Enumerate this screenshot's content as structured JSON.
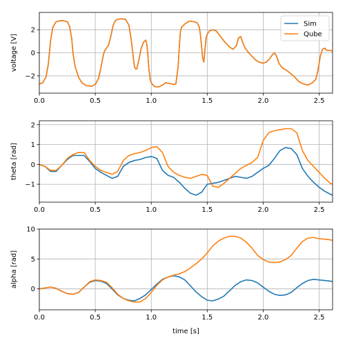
{
  "chart_data": [
    {
      "type": "line",
      "ylabel": "voltage [V]",
      "xlabel": "",
      "xlim": [
        0.0,
        2.62
      ],
      "ylim": [
        -3.5,
        3.5
      ],
      "xticks": [
        0.0,
        0.5,
        1.0,
        1.5,
        2.0,
        2.5
      ],
      "xtick_labels": [
        "0.0",
        "0.5",
        "1.0",
        "1.5",
        "2.0",
        "2.5"
      ],
      "yticks": [
        -2,
        0,
        2
      ],
      "ytick_labels": [
        "−2",
        "0",
        "2"
      ],
      "grid": true,
      "legend": {
        "placement": "top-right",
        "entries": [
          "Sim",
          "Qube"
        ]
      },
      "series": [
        {
          "name": "Sim",
          "color": "#1f77b4",
          "x": [
            0.0,
            0.03,
            0.06,
            0.08,
            0.1,
            0.12,
            0.15,
            0.2,
            0.25,
            0.27,
            0.29,
            0.3,
            0.32,
            0.35,
            0.38,
            0.42,
            0.47,
            0.5,
            0.53,
            0.55,
            0.57,
            0.58,
            0.6,
            0.62,
            0.64,
            0.66,
            0.68,
            0.7,
            0.73,
            0.77,
            0.8,
            0.82,
            0.84,
            0.85,
            0.86,
            0.87,
            0.89,
            0.91,
            0.93,
            0.95,
            0.96,
            0.97,
            0.98,
            0.99,
            1.0,
            1.02,
            1.04,
            1.07,
            1.1,
            1.13,
            1.16,
            1.18,
            1.2,
            1.22,
            1.24,
            1.25,
            1.26,
            1.27,
            1.3,
            1.34,
            1.38,
            1.41,
            1.43,
            1.44,
            1.45,
            1.46,
            1.47,
            1.48,
            1.49,
            1.5,
            1.52,
            1.55,
            1.58,
            1.62,
            1.66,
            1.7,
            1.73,
            1.76,
            1.78,
            1.8,
            1.81,
            1.82,
            1.84,
            1.87,
            1.9,
            1.93,
            1.96,
            2.0,
            2.03,
            2.06,
            2.08,
            2.1,
            2.12,
            2.14,
            2.17,
            2.22,
            2.27,
            2.32,
            2.36,
            2.4,
            2.44,
            2.47,
            2.49,
            2.51,
            2.53,
            2.55,
            2.57,
            2.6,
            2.62
          ],
          "y": [
            -2.7,
            -2.6,
            -2.1,
            -1.0,
            1.0,
            2.2,
            2.7,
            2.8,
            2.7,
            2.3,
            1.2,
            0.0,
            -1.2,
            -2.1,
            -2.6,
            -2.85,
            -2.9,
            -2.75,
            -2.2,
            -1.3,
            -0.3,
            0.1,
            0.4,
            0.7,
            1.5,
            2.4,
            2.8,
            2.9,
            2.95,
            2.9,
            2.4,
            1.2,
            -0.4,
            -1.2,
            -1.4,
            -1.4,
            -0.6,
            0.4,
            0.9,
            1.1,
            0.8,
            -0.2,
            -1.5,
            -2.3,
            -2.6,
            -2.85,
            -2.95,
            -2.95,
            -2.8,
            -2.6,
            -2.65,
            -2.7,
            -2.75,
            -2.7,
            -1.2,
            0.4,
            1.8,
            2.2,
            2.5,
            2.75,
            2.7,
            2.6,
            2.2,
            1.5,
            0.5,
            -0.5,
            -0.8,
            0.3,
            1.3,
            1.6,
            1.9,
            2.0,
            1.9,
            1.4,
            0.9,
            0.5,
            0.3,
            0.6,
            1.3,
            1.4,
            1.1,
            0.8,
            0.4,
            0.0,
            -0.3,
            -0.6,
            -0.8,
            -0.9,
            -0.8,
            -0.5,
            -0.2,
            0.0,
            -0.3,
            -0.9,
            -1.3,
            -1.6,
            -2.0,
            -2.5,
            -2.7,
            -2.8,
            -2.6,
            -2.3,
            -1.5,
            -0.3,
            0.3,
            0.4,
            0.2,
            0.2,
            0.15
          ]
        },
        {
          "name": "Qube",
          "color": "#ff7f0e",
          "x": [
            0.0,
            0.03,
            0.06,
            0.08,
            0.1,
            0.12,
            0.15,
            0.2,
            0.25,
            0.27,
            0.29,
            0.3,
            0.32,
            0.35,
            0.38,
            0.42,
            0.47,
            0.5,
            0.53,
            0.55,
            0.57,
            0.58,
            0.6,
            0.62,
            0.64,
            0.66,
            0.68,
            0.7,
            0.73,
            0.77,
            0.8,
            0.82,
            0.84,
            0.85,
            0.86,
            0.87,
            0.89,
            0.91,
            0.93,
            0.95,
            0.96,
            0.97,
            0.98,
            0.99,
            1.0,
            1.02,
            1.04,
            1.07,
            1.1,
            1.13,
            1.16,
            1.18,
            1.2,
            1.22,
            1.24,
            1.25,
            1.26,
            1.27,
            1.3,
            1.34,
            1.38,
            1.41,
            1.43,
            1.44,
            1.45,
            1.46,
            1.47,
            1.48,
            1.49,
            1.5,
            1.52,
            1.55,
            1.58,
            1.62,
            1.66,
            1.7,
            1.73,
            1.76,
            1.78,
            1.8,
            1.81,
            1.82,
            1.84,
            1.87,
            1.9,
            1.93,
            1.96,
            2.0,
            2.03,
            2.06,
            2.08,
            2.1,
            2.12,
            2.14,
            2.17,
            2.22,
            2.27,
            2.32,
            2.36,
            2.4,
            2.44,
            2.47,
            2.49,
            2.51,
            2.53,
            2.55,
            2.57,
            2.6,
            2.62
          ],
          "y": [
            -2.7,
            -2.6,
            -2.1,
            -1.0,
            1.0,
            2.2,
            2.7,
            2.8,
            2.7,
            2.3,
            1.2,
            0.0,
            -1.2,
            -2.1,
            -2.6,
            -2.85,
            -2.9,
            -2.75,
            -2.2,
            -1.3,
            -0.3,
            0.1,
            0.4,
            0.7,
            1.5,
            2.4,
            2.8,
            2.9,
            2.95,
            2.9,
            2.4,
            1.2,
            -0.4,
            -1.2,
            -1.4,
            -1.4,
            -0.6,
            0.4,
            0.9,
            1.1,
            0.8,
            -0.2,
            -1.5,
            -2.3,
            -2.6,
            -2.85,
            -2.95,
            -2.95,
            -2.8,
            -2.6,
            -2.65,
            -2.7,
            -2.75,
            -2.7,
            -1.2,
            0.4,
            1.8,
            2.2,
            2.5,
            2.75,
            2.7,
            2.6,
            2.2,
            1.5,
            0.5,
            -0.5,
            -0.8,
            0.3,
            1.3,
            1.6,
            1.9,
            2.0,
            1.9,
            1.4,
            0.9,
            0.5,
            0.3,
            0.6,
            1.3,
            1.4,
            1.1,
            0.8,
            0.4,
            0.0,
            -0.3,
            -0.6,
            -0.8,
            -0.9,
            -0.8,
            -0.5,
            -0.2,
            0.0,
            -0.3,
            -0.9,
            -1.3,
            -1.6,
            -2.0,
            -2.5,
            -2.7,
            -2.8,
            -2.6,
            -2.3,
            -1.5,
            -0.3,
            0.3,
            0.4,
            0.2,
            0.2,
            0.15
          ]
        }
      ]
    },
    {
      "type": "line",
      "ylabel": "theta [rad]",
      "xlabel": "",
      "xlim": [
        0.0,
        2.62
      ],
      "ylim": [
        -1.9,
        2.2
      ],
      "xticks": [
        0.0,
        0.5,
        1.0,
        1.5,
        2.0,
        2.5
      ],
      "xtick_labels": [
        "0.0",
        "0.5",
        "1.0",
        "1.5",
        "2.0",
        "2.5"
      ],
      "yticks": [
        -1,
        0,
        1,
        2
      ],
      "ytick_labels": [
        "−1",
        "0",
        "1",
        "2"
      ],
      "grid": true,
      "series": [
        {
          "name": "Sim",
          "color": "#1f77b4",
          "x": [
            0.0,
            0.05,
            0.1,
            0.15,
            0.2,
            0.25,
            0.3,
            0.35,
            0.4,
            0.45,
            0.5,
            0.55,
            0.6,
            0.65,
            0.7,
            0.75,
            0.8,
            0.85,
            0.9,
            0.95,
            1.0,
            1.05,
            1.1,
            1.15,
            1.2,
            1.25,
            1.3,
            1.35,
            1.4,
            1.45,
            1.5,
            1.55,
            1.6,
            1.65,
            1.7,
            1.75,
            1.8,
            1.85,
            1.9,
            1.95,
            2.0,
            2.05,
            2.1,
            2.15,
            2.2,
            2.25,
            2.3,
            2.35,
            2.4,
            2.45,
            2.5,
            2.55,
            2.6,
            2.62
          ],
          "y": [
            0.0,
            -0.1,
            -0.35,
            -0.35,
            -0.05,
            0.25,
            0.45,
            0.45,
            0.45,
            0.15,
            -0.2,
            -0.4,
            -0.55,
            -0.7,
            -0.6,
            -0.1,
            0.1,
            0.2,
            0.25,
            0.35,
            0.4,
            0.3,
            -0.3,
            -0.55,
            -0.65,
            -0.9,
            -1.2,
            -1.45,
            -1.55,
            -1.4,
            -1.0,
            -0.95,
            -0.9,
            -0.8,
            -0.7,
            -0.6,
            -0.65,
            -0.7,
            -0.6,
            -0.4,
            -0.2,
            -0.05,
            0.3,
            0.7,
            0.85,
            0.8,
            0.5,
            -0.2,
            -0.6,
            -0.9,
            -1.15,
            -1.35,
            -1.5,
            -1.55
          ]
        },
        {
          "name": "Qube",
          "color": "#ff7f0e",
          "x": [
            0.0,
            0.05,
            0.1,
            0.15,
            0.2,
            0.25,
            0.3,
            0.35,
            0.4,
            0.45,
            0.5,
            0.55,
            0.6,
            0.65,
            0.7,
            0.75,
            0.8,
            0.85,
            0.9,
            0.95,
            1.0,
            1.05,
            1.1,
            1.15,
            1.2,
            1.25,
            1.3,
            1.35,
            1.4,
            1.45,
            1.5,
            1.55,
            1.6,
            1.65,
            1.7,
            1.75,
            1.8,
            1.85,
            1.9,
            1.95,
            2.0,
            2.05,
            2.1,
            2.15,
            2.2,
            2.25,
            2.3,
            2.35,
            2.4,
            2.45,
            2.5,
            2.55,
            2.6,
            2.62
          ],
          "y": [
            0.0,
            -0.1,
            -0.3,
            -0.3,
            -0.05,
            0.3,
            0.5,
            0.6,
            0.6,
            0.2,
            -0.1,
            -0.3,
            -0.4,
            -0.5,
            -0.35,
            0.2,
            0.45,
            0.55,
            0.6,
            0.7,
            0.85,
            0.9,
            0.6,
            -0.1,
            -0.4,
            -0.55,
            -0.65,
            -0.7,
            -0.6,
            -0.5,
            -0.55,
            -1.1,
            -1.15,
            -0.95,
            -0.7,
            -0.45,
            -0.2,
            -0.05,
            0.1,
            0.35,
            1.2,
            1.6,
            1.7,
            1.75,
            1.8,
            1.8,
            1.6,
            0.7,
            0.2,
            -0.1,
            -0.4,
            -0.7,
            -0.95,
            -1.0
          ]
        }
      ]
    },
    {
      "type": "line",
      "ylabel": "alpha [rad]",
      "xlabel": "time [s]",
      "xlim": [
        0.0,
        2.62
      ],
      "ylim": [
        -3.5,
        10.0
      ],
      "xticks": [
        0.0,
        0.5,
        1.0,
        1.5,
        2.0,
        2.5
      ],
      "xtick_labels": [
        "0.0",
        "0.5",
        "1.0",
        "1.5",
        "2.0",
        "2.5"
      ],
      "yticks": [
        0,
        5,
        10
      ],
      "ytick_labels": [
        "0",
        "5",
        "10"
      ],
      "grid": true,
      "series": [
        {
          "name": "Sim",
          "color": "#1f77b4",
          "x": [
            0.0,
            0.05,
            0.1,
            0.15,
            0.2,
            0.25,
            0.3,
            0.35,
            0.4,
            0.45,
            0.5,
            0.55,
            0.6,
            0.65,
            0.7,
            0.75,
            0.8,
            0.85,
            0.9,
            0.95,
            1.0,
            1.05,
            1.1,
            1.15,
            1.2,
            1.25,
            1.3,
            1.35,
            1.4,
            1.45,
            1.5,
            1.55,
            1.6,
            1.65,
            1.7,
            1.75,
            1.8,
            1.85,
            1.9,
            1.95,
            2.0,
            2.05,
            2.1,
            2.15,
            2.2,
            2.25,
            2.3,
            2.35,
            2.4,
            2.45,
            2.5,
            2.55,
            2.6,
            2.62
          ],
          "y": [
            0.0,
            0.15,
            0.3,
            0.1,
            -0.4,
            -0.8,
            -0.9,
            -0.6,
            0.3,
            1.1,
            1.4,
            1.3,
            0.9,
            0.0,
            -1.0,
            -1.6,
            -1.9,
            -2.0,
            -1.6,
            -1.0,
            -0.1,
            0.8,
            1.6,
            2.0,
            2.2,
            2.0,
            1.5,
            0.5,
            -0.5,
            -1.3,
            -1.9,
            -2.0,
            -1.7,
            -1.2,
            -0.3,
            0.6,
            1.2,
            1.5,
            1.4,
            1.0,
            0.3,
            -0.4,
            -0.9,
            -1.1,
            -1.0,
            -0.6,
            0.2,
            0.9,
            1.4,
            1.6,
            1.5,
            1.4,
            1.3,
            1.2
          ]
        },
        {
          "name": "Qube",
          "color": "#ff7f0e",
          "x": [
            0.0,
            0.05,
            0.1,
            0.15,
            0.2,
            0.25,
            0.3,
            0.35,
            0.4,
            0.45,
            0.5,
            0.55,
            0.6,
            0.65,
            0.7,
            0.75,
            0.8,
            0.85,
            0.9,
            0.95,
            1.0,
            1.05,
            1.1,
            1.15,
            1.2,
            1.25,
            1.3,
            1.35,
            1.4,
            1.45,
            1.5,
            1.55,
            1.6,
            1.65,
            1.7,
            1.75,
            1.8,
            1.85,
            1.9,
            1.95,
            2.0,
            2.05,
            2.1,
            2.15,
            2.2,
            2.25,
            2.3,
            2.35,
            2.4,
            2.45,
            2.5,
            2.55,
            2.6,
            2.62
          ],
          "y": [
            0.0,
            0.15,
            0.3,
            0.1,
            -0.4,
            -0.8,
            -0.9,
            -0.6,
            0.3,
            1.2,
            1.5,
            1.4,
            1.1,
            0.2,
            -0.9,
            -1.6,
            -2.0,
            -2.2,
            -2.2,
            -1.6,
            -0.6,
            0.6,
            1.5,
            2.0,
            2.3,
            2.5,
            2.9,
            3.5,
            4.2,
            5.0,
            6.0,
            7.2,
            8.0,
            8.5,
            8.8,
            8.8,
            8.5,
            7.8,
            6.8,
            5.6,
            4.9,
            4.5,
            4.4,
            4.5,
            4.9,
            5.6,
            6.8,
            7.9,
            8.5,
            8.6,
            8.4,
            8.3,
            8.2,
            8.1
          ]
        }
      ]
    }
  ]
}
